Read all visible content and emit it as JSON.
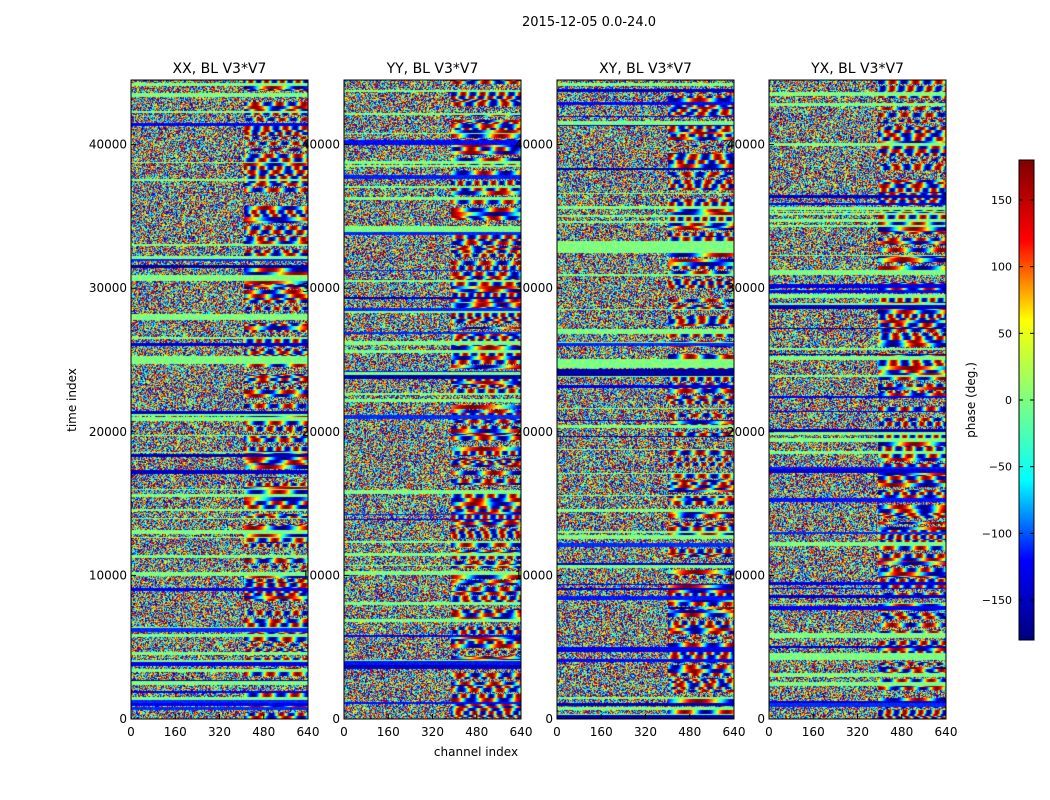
{
  "chart_data": {
    "type": "heatmap",
    "title": "2015-12-05 0.0-24.0",
    "ylabel": "time index",
    "xlabel": "channel index",
    "xlim": [
      0,
      640
    ],
    "ylim": [
      0,
      44500
    ],
    "x_ticks": [
      "0",
      "160",
      "320",
      "480",
      "640"
    ],
    "y_ticks": [
      "0",
      "10000",
      "20000",
      "30000",
      "40000"
    ],
    "panels": [
      {
        "title": "XX, BL V3*V7"
      },
      {
        "title": "YY, BL V3*V7"
      },
      {
        "title": "XY, BL V3*V7"
      },
      {
        "title": "YX, BL V3*V7"
      }
    ],
    "colorbar": {
      "label": "phase (deg.)",
      "range": [
        -180,
        180
      ],
      "ticks": [
        "150",
        "100",
        "50",
        "0",
        "−50",
        "−100",
        "−150"
      ],
      "colormap": "jet",
      "colors": [
        "#00007f",
        "#0000ff",
        "#00ffff",
        "#7fff7f",
        "#ffff00",
        "#ff0000",
        "#7f0000"
      ]
    }
  }
}
